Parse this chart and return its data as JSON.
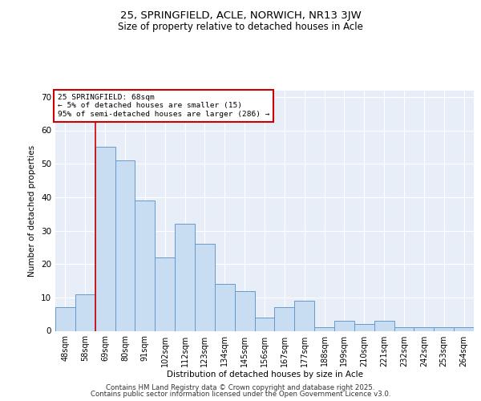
{
  "title": "25, SPRINGFIELD, ACLE, NORWICH, NR13 3JW",
  "subtitle": "Size of property relative to detached houses in Acle",
  "xlabel": "Distribution of detached houses by size in Acle",
  "ylabel": "Number of detached properties",
  "bar_labels": [
    "48sqm",
    "58sqm",
    "69sqm",
    "80sqm",
    "91sqm",
    "102sqm",
    "112sqm",
    "123sqm",
    "134sqm",
    "145sqm",
    "156sqm",
    "167sqm",
    "177sqm",
    "188sqm",
    "199sqm",
    "210sqm",
    "221sqm",
    "232sqm",
    "242sqm",
    "253sqm",
    "264sqm"
  ],
  "bar_values": [
    7,
    11,
    55,
    51,
    39,
    22,
    32,
    26,
    14,
    12,
    4,
    7,
    9,
    1,
    3,
    2,
    3,
    1,
    1,
    1,
    1
  ],
  "bar_color": "#c9ddf2",
  "bar_edge_color": "#6699cc",
  "ylim": [
    0,
    72
  ],
  "yticks": [
    0,
    10,
    20,
    30,
    40,
    50,
    60,
    70
  ],
  "annotation_title": "25 SPRINGFIELD: 68sqm",
  "annotation_line1": "← 5% of detached houses are smaller (15)",
  "annotation_line2": "95% of semi-detached houses are larger (286) →",
  "annotation_box_color": "#ffffff",
  "annotation_box_edge": "#cc0000",
  "red_line_color": "#cc0000",
  "bg_color": "#e8eef8",
  "grid_color": "#ffffff",
  "footer1": "Contains HM Land Registry data © Crown copyright and database right 2025.",
  "footer2": "Contains public sector information licensed under the Open Government Licence v3.0."
}
